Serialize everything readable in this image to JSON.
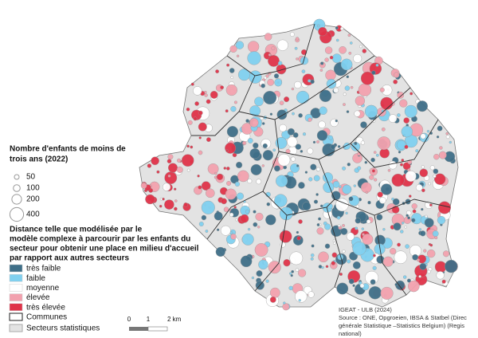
{
  "size_legend": {
    "title_lines": [
      "Nombre d'enfants de moins de",
      "trois ans (2022)"
    ],
    "values": [
      50,
      100,
      200,
      400
    ]
  },
  "color_legend": {
    "title_lines": [
      "Distance telle que modélisée par le",
      "modèle complexe à parcourir par les enfants du",
      "secteur pour obtenir une place en milieu d'accueil",
      "par rapport aux autres secteurs"
    ],
    "classes": [
      {
        "name": "très faible",
        "color": "#3f6f88"
      },
      {
        "name": "faible",
        "color": "#80d0ef"
      },
      {
        "name": "moyenne",
        "color": "#ffffff"
      },
      {
        "name": "élevée",
        "color": "#f2a1ae"
      },
      {
        "name": "très élevée",
        "color": "#df3349"
      }
    ],
    "communes": "Communes",
    "secteurs": "Secteurs statistiques"
  },
  "scale_bar": {
    "labels": [
      "0",
      "1",
      "2 km"
    ]
  },
  "source": [
    "IGEAT - ULB (2024)",
    "Source : ONE, Opgroeien, IBSA & Statbel (Direc",
    "générale Statistique –Statistics Belgium) (Regis",
    "national)"
  ]
}
